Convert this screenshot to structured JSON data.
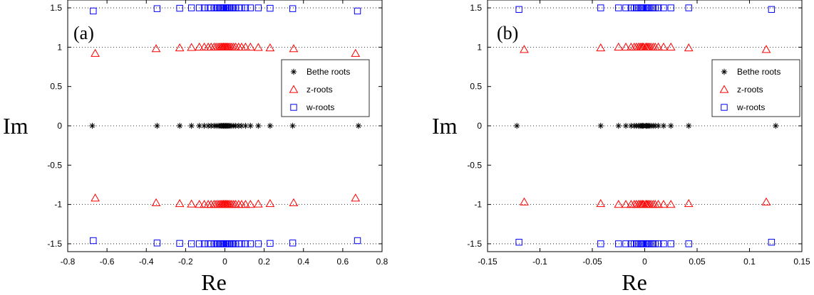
{
  "chart_data": [
    {
      "type": "scatter",
      "panel_label": "(a)",
      "xlabel": "Re",
      "ylabel": "Im",
      "xlim": [
        -0.8,
        0.8
      ],
      "ylim": [
        -1.6,
        1.6
      ],
      "xticks": [
        "-0.8",
        "-0.6",
        "-0.4",
        "-0.2",
        "0",
        "0.2",
        "0.4",
        "0.6",
        "0.8"
      ],
      "xtick_values": [
        -0.8,
        -0.6,
        -0.4,
        -0.2,
        0,
        0.2,
        0.4,
        0.6,
        0.8
      ],
      "yticks": [
        "-1.5",
        "-1",
        "-0.5",
        "0",
        "0.5",
        "1",
        "1.5"
      ],
      "ytick_values": [
        -1.5,
        -1,
        -0.5,
        0,
        0.5,
        1,
        1.5
      ],
      "grid": "dotted horizontal lines at y = -1.5, -1, 0, 1, 1.5",
      "legend_position": "right",
      "series": [
        {
          "name": "Bethe roots",
          "marker": "asterisk",
          "color": "#000000",
          "x": [
            -0.675,
            -0.345,
            -0.23,
            -0.17,
            -0.13,
            -0.105,
            -0.085,
            -0.07,
            -0.055,
            -0.045,
            -0.035,
            -0.027,
            -0.02,
            -0.014,
            -0.008,
            -0.003,
            0.003,
            0.008,
            0.014,
            0.02,
            0.027,
            0.035,
            0.045,
            0.055,
            0.07,
            0.085,
            0.105,
            0.13,
            0.17,
            0.23,
            0.345,
            0.68
          ],
          "y": 0
        },
        {
          "name": "z-roots",
          "marker": "triangle",
          "color": "#ff0000",
          "x": [
            -0.66,
            -0.35,
            -0.23,
            -0.17,
            -0.13,
            -0.105,
            -0.085,
            -0.07,
            -0.055,
            -0.045,
            -0.035,
            -0.027,
            -0.02,
            -0.014,
            -0.008,
            -0.003,
            0.003,
            0.008,
            0.014,
            0.02,
            0.027,
            0.035,
            0.045,
            0.055,
            0.07,
            0.085,
            0.105,
            0.13,
            0.17,
            0.23,
            0.35,
            0.665
          ],
          "y_upper": [
            0.92,
            0.98,
            0.99,
            0.995,
            1,
            1,
            1,
            1,
            1,
            1,
            1,
            1,
            1,
            1,
            1,
            1,
            1,
            1,
            1,
            1,
            1,
            1,
            1,
            1,
            1,
            1,
            1,
            1,
            0.995,
            0.99,
            0.98,
            0.92
          ],
          "y_lower": [
            -0.92,
            -0.98,
            -0.99,
            -0.995,
            -1,
            -1,
            -1,
            -1,
            -1,
            -1,
            -1,
            -1,
            -1,
            -1,
            -1,
            -1,
            -1,
            -1,
            -1,
            -1,
            -1,
            -1,
            -1,
            -1,
            -1,
            -1,
            -1,
            -1,
            -0.995,
            -0.99,
            -0.98,
            -0.92
          ]
        },
        {
          "name": "w-roots",
          "marker": "square",
          "color": "#0000ff",
          "x": [
            -0.67,
            -0.345,
            -0.23,
            -0.17,
            -0.13,
            -0.105,
            -0.085,
            -0.07,
            -0.055,
            -0.045,
            -0.035,
            -0.027,
            -0.02,
            -0.014,
            -0.008,
            -0.003,
            0.003,
            0.008,
            0.014,
            0.02,
            0.027,
            0.035,
            0.045,
            0.055,
            0.07,
            0.085,
            0.105,
            0.13,
            0.17,
            0.23,
            0.345,
            0.675
          ],
          "y_upper": [
            1.46,
            1.49,
            1.495,
            1.5,
            1.5,
            1.5,
            1.5,
            1.5,
            1.5,
            1.5,
            1.5,
            1.5,
            1.5,
            1.5,
            1.5,
            1.5,
            1.5,
            1.5,
            1.5,
            1.5,
            1.5,
            1.5,
            1.5,
            1.5,
            1.5,
            1.5,
            1.5,
            1.5,
            1.5,
            1.495,
            1.49,
            1.46
          ],
          "y_lower": [
            -1.46,
            -1.49,
            -1.495,
            -1.5,
            -1.5,
            -1.5,
            -1.5,
            -1.5,
            -1.5,
            -1.5,
            -1.5,
            -1.5,
            -1.5,
            -1.5,
            -1.5,
            -1.5,
            -1.5,
            -1.5,
            -1.5,
            -1.5,
            -1.5,
            -1.5,
            -1.5,
            -1.5,
            -1.5,
            -1.5,
            -1.5,
            -1.5,
            -1.5,
            -1.495,
            -1.49,
            -1.46
          ]
        }
      ]
    },
    {
      "type": "scatter",
      "panel_label": "(b)",
      "xlabel": "Re",
      "ylabel": "Im",
      "xlim": [
        -0.15,
        0.15
      ],
      "ylim": [
        -1.6,
        1.6
      ],
      "xticks": [
        "-0.15",
        "-0.1",
        "-0.05",
        "0",
        "0.05",
        "0.1",
        "0.15"
      ],
      "xtick_values": [
        -0.15,
        -0.1,
        -0.05,
        0,
        0.05,
        0.1,
        0.15
      ],
      "yticks": [
        "-1.5",
        "-1",
        "-0.5",
        "0",
        "0.5",
        "1",
        "1.5"
      ],
      "ytick_values": [
        -1.5,
        -1,
        -0.5,
        0,
        0.5,
        1,
        1.5
      ],
      "grid": "dotted horizontal lines at y = -1.5, -1, 0, 1, 1.5",
      "legend_position": "right",
      "series": [
        {
          "name": "Bethe roots",
          "marker": "asterisk",
          "color": "#000000",
          "x": [
            -0.122,
            -0.042,
            -0.025,
            -0.018,
            -0.013,
            -0.01,
            -0.008,
            -0.006,
            -0.0045,
            -0.0032,
            -0.002,
            -0.001,
            0.001,
            0.002,
            0.0032,
            0.0045,
            0.006,
            0.008,
            0.01,
            0.013,
            0.018,
            0.025,
            0.042,
            0.125
          ],
          "y": 0
        },
        {
          "name": "z-roots",
          "marker": "triangle",
          "color": "#ff0000",
          "x": [
            -0.115,
            -0.042,
            -0.025,
            -0.018,
            -0.013,
            -0.01,
            -0.008,
            -0.006,
            -0.0045,
            -0.0032,
            -0.002,
            -0.001,
            0.001,
            0.002,
            0.0032,
            0.0045,
            0.006,
            0.008,
            0.01,
            0.013,
            0.018,
            0.025,
            0.042,
            0.116
          ],
          "y_upper": [
            0.97,
            0.99,
            1,
            1,
            1,
            1,
            1,
            1,
            1,
            1,
            1,
            1,
            1,
            1,
            1,
            1,
            1,
            1,
            1,
            1,
            1,
            1,
            0.99,
            0.97
          ],
          "y_lower": [
            -0.97,
            -0.99,
            -1,
            -1,
            -1,
            -1,
            -1,
            -1,
            -1,
            -1,
            -1,
            -1,
            -1,
            -1,
            -1,
            -1,
            -1,
            -1,
            -1,
            -1,
            -1,
            -1,
            -0.99,
            -0.97
          ]
        },
        {
          "name": "w-roots",
          "marker": "square",
          "color": "#0000ff",
          "x": [
            -0.12,
            -0.042,
            -0.025,
            -0.018,
            -0.013,
            -0.01,
            -0.008,
            -0.006,
            -0.0045,
            -0.0032,
            -0.002,
            -0.001,
            0.001,
            0.002,
            0.0032,
            0.0045,
            0.006,
            0.008,
            0.01,
            0.013,
            0.018,
            0.025,
            0.042,
            0.121
          ],
          "y_upper": [
            1.48,
            1.5,
            1.5,
            1.5,
            1.5,
            1.5,
            1.5,
            1.5,
            1.5,
            1.5,
            1.5,
            1.5,
            1.5,
            1.5,
            1.5,
            1.5,
            1.5,
            1.5,
            1.5,
            1.5,
            1.5,
            1.5,
            1.5,
            1.48
          ],
          "y_lower": [
            -1.48,
            -1.5,
            -1.5,
            -1.5,
            -1.5,
            -1.5,
            -1.5,
            -1.5,
            -1.5,
            -1.5,
            -1.5,
            -1.5,
            -1.5,
            -1.5,
            -1.5,
            -1.5,
            -1.5,
            -1.5,
            -1.5,
            -1.5,
            -1.5,
            -1.5,
            -1.5,
            -1.48
          ]
        }
      ]
    }
  ]
}
